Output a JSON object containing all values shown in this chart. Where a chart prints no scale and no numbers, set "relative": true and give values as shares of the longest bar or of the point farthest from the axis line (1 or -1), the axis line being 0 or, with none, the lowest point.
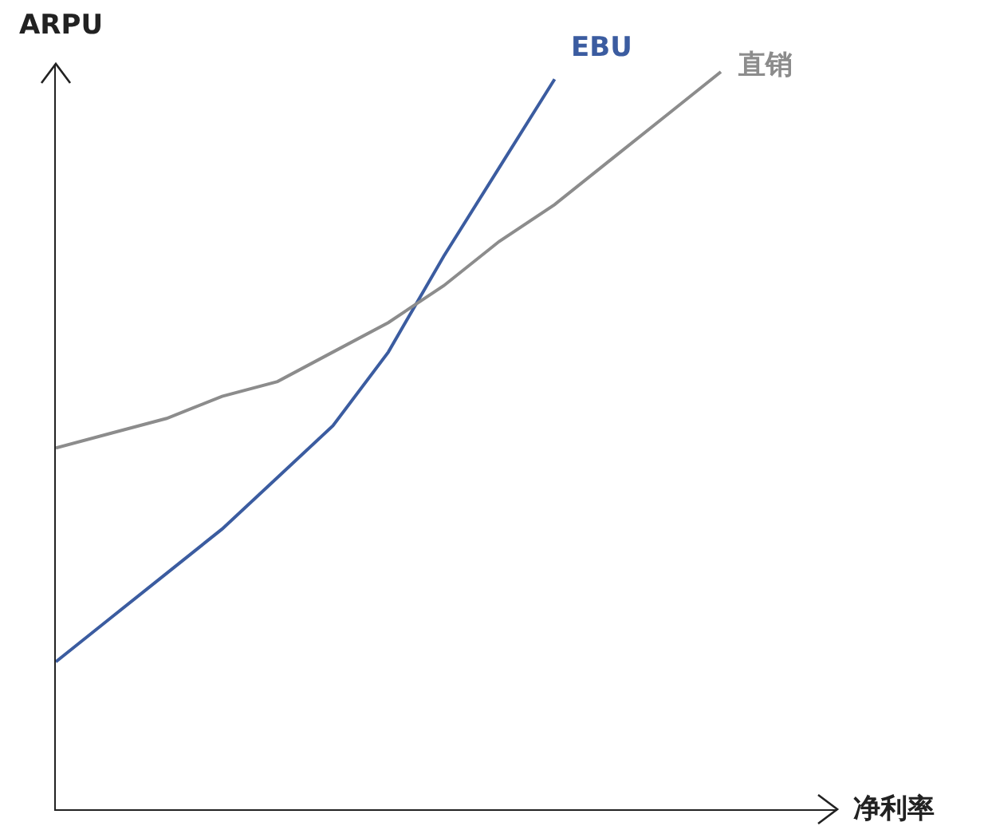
{
  "chart_data": {
    "type": "line",
    "relative": true,
    "xlabel": "净利率",
    "ylabel": "ARPU",
    "legend": false,
    "grid": false,
    "tick_labels": false,
    "categories": [
      null,
      null,
      null,
      null,
      null,
      null,
      null,
      null,
      null,
      null,
      null,
      null,
      null
    ],
    "series": [
      {
        "name": "EBU",
        "color": "#3b5ca0",
        "values": [
          0.2,
          0.26,
          0.32,
          0.38,
          0.45,
          0.52,
          0.62,
          0.75,
          0.87,
          0.99,
          null,
          null,
          null
        ]
      },
      {
        "name": "直销",
        "color": "#8c8c8c",
        "values": [
          0.49,
          0.51,
          0.53,
          0.56,
          0.58,
          0.62,
          0.66,
          0.71,
          0.77,
          0.82,
          0.88,
          0.94,
          1.0
        ]
      }
    ]
  }
}
